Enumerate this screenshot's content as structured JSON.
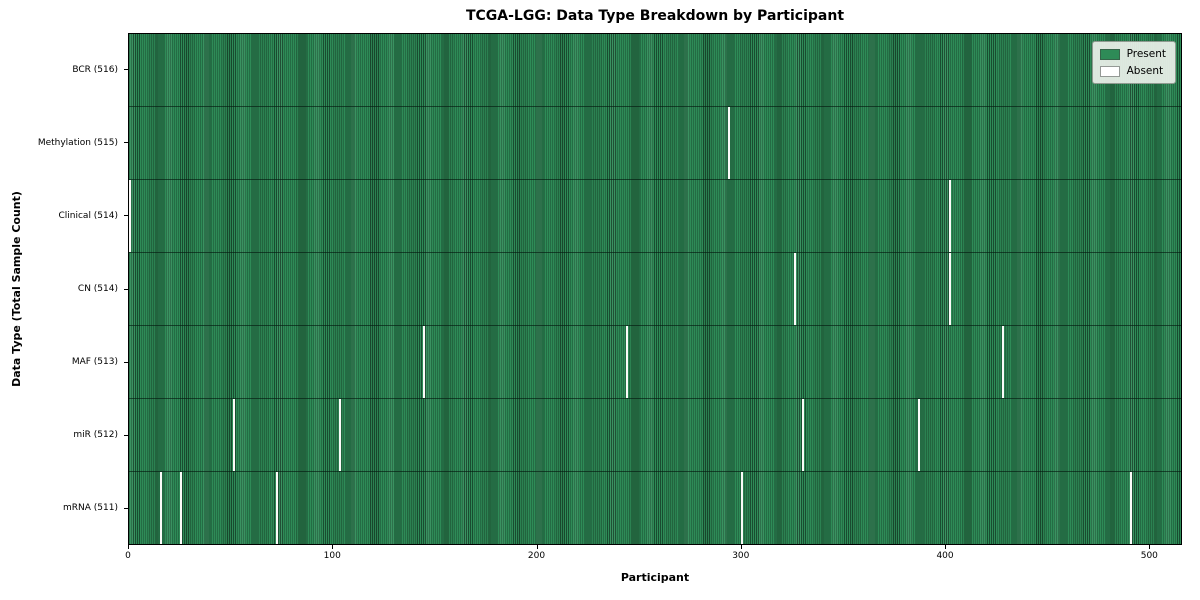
{
  "chart_data": {
    "type": "heatmap",
    "title": "TCGA-LGG: Data Type Breakdown by Participant",
    "xlabel": "Participant",
    "ylabel": "Data Type (Total Sample Count)",
    "x_ticks": [
      0,
      100,
      200,
      300,
      400,
      500
    ],
    "xlim": [
      0,
      516
    ],
    "n_participants": 516,
    "grid": false,
    "legend_position": "upper right",
    "legend": [
      {
        "label": "Present",
        "color": "#2e8b57"
      },
      {
        "label": "Absent",
        "color": "#ffffff"
      }
    ],
    "rows": [
      {
        "label": "BCR (516)",
        "data_type": "BCR",
        "total": 516,
        "absent_participants": []
      },
      {
        "label": "Methylation (515)",
        "data_type": "Methylation",
        "total": 515,
        "absent_participants": [
          294
        ]
      },
      {
        "label": "Clinical (514)",
        "data_type": "Clinical",
        "total": 514,
        "absent_participants": [
          0,
          402
        ]
      },
      {
        "label": "CN (514)",
        "data_type": "CN",
        "total": 514,
        "absent_participants": [
          326,
          402
        ]
      },
      {
        "label": "MAF (513)",
        "data_type": "MAF",
        "total": 513,
        "absent_participants": [
          144,
          244,
          428
        ]
      },
      {
        "label": "miR (512)",
        "data_type": "miR",
        "total": 512,
        "absent_participants": [
          51,
          103,
          330,
          387
        ]
      },
      {
        "label": "mRNA (511)",
        "data_type": "mRNA",
        "total": 511,
        "absent_participants": [
          15,
          25,
          72,
          300,
          491
        ]
      }
    ],
    "colors": {
      "present": "#2e8b57",
      "absent": "#ffffff",
      "cell_edge": "rgba(0,0,0,0.45)",
      "row_separator": "rgba(5,28,17,0.65)",
      "plot_border": "#000000"
    }
  }
}
